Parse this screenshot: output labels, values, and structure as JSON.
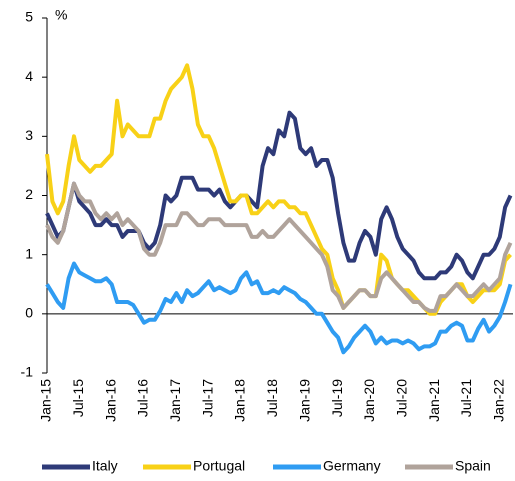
{
  "chart_data": {
    "type": "line",
    "ylabel": "%",
    "categories": [
      "Jan-15",
      null,
      null,
      null,
      null,
      null,
      "Jul-15",
      null,
      null,
      null,
      null,
      null,
      "Jan-16",
      null,
      null,
      null,
      null,
      null,
      "Jul-16",
      null,
      null,
      null,
      null,
      null,
      "Jan-17",
      null,
      null,
      null,
      null,
      null,
      "Jul-17",
      null,
      null,
      null,
      null,
      null,
      "Jan-18",
      null,
      null,
      null,
      null,
      null,
      "Jul-18",
      null,
      null,
      null,
      null,
      null,
      "Jan-19",
      null,
      null,
      null,
      null,
      null,
      "Jul-19",
      null,
      null,
      null,
      null,
      null,
      "Jan-20",
      null,
      null,
      null,
      null,
      null,
      "Jul-20",
      null,
      null,
      null,
      null,
      null,
      "Jan-21",
      null,
      null,
      null,
      null,
      null,
      "Jul-21",
      null,
      null,
      null,
      null,
      null,
      "Jan-22",
      null,
      null
    ],
    "series": [
      {
        "name": "Italy",
        "color": "#2e3a78",
        "values": [
          1.7,
          1.5,
          1.3,
          1.4,
          1.8,
          2.2,
          1.9,
          1.8,
          1.7,
          1.5,
          1.5,
          1.6,
          1.5,
          1.5,
          1.3,
          1.4,
          1.4,
          1.4,
          1.2,
          1.1,
          1.2,
          1.5,
          2.0,
          1.9,
          2.0,
          2.3,
          2.3,
          2.3,
          2.1,
          2.1,
          2.1,
          2.0,
          2.1,
          1.9,
          1.8,
          1.9,
          2.0,
          2.0,
          1.9,
          1.8,
          2.5,
          2.8,
          2.7,
          3.1,
          3.0,
          3.4,
          3.3,
          2.8,
          2.7,
          2.8,
          2.5,
          2.6,
          2.6,
          2.3,
          1.7,
          1.2,
          0.9,
          0.9,
          1.2,
          1.4,
          1.3,
          1.0,
          1.6,
          1.8,
          1.6,
          1.3,
          1.1,
          1.0,
          0.9,
          0.7,
          0.6,
          0.6,
          0.6,
          0.7,
          0.7,
          0.8,
          1.0,
          0.9,
          0.7,
          0.6,
          0.8,
          1.0,
          1.0,
          1.1,
          1.3,
          1.8,
          2.0
        ]
      },
      {
        "name": "Portugal",
        "color": "#f8d117",
        "values": [
          2.7,
          1.9,
          1.7,
          1.9,
          2.5,
          3.0,
          2.6,
          2.5,
          2.4,
          2.5,
          2.5,
          2.6,
          2.7,
          3.6,
          3.0,
          3.2,
          3.1,
          3.0,
          3.0,
          3.0,
          3.3,
          3.3,
          3.6,
          3.8,
          3.9,
          4.0,
          4.2,
          3.8,
          3.2,
          3.0,
          3.0,
          2.8,
          2.5,
          2.2,
          1.9,
          1.9,
          2.0,
          2.0,
          1.7,
          1.7,
          1.8,
          1.9,
          1.8,
          1.9,
          1.9,
          1.8,
          1.8,
          1.7,
          1.7,
          1.5,
          1.3,
          1.1,
          1.0,
          0.6,
          0.4,
          0.1,
          0.2,
          0.3,
          0.4,
          0.4,
          0.3,
          0.3,
          1.0,
          0.9,
          0.6,
          0.5,
          0.4,
          0.4,
          0.3,
          0.2,
          0.1,
          0.0,
          0.0,
          0.2,
          0.3,
          0.4,
          0.5,
          0.5,
          0.3,
          0.2,
          0.3,
          0.4,
          0.4,
          0.4,
          0.5,
          0.9,
          1.0
        ]
      },
      {
        "name": "Germany",
        "color": "#2f9cf2",
        "values": [
          0.5,
          0.35,
          0.2,
          0.1,
          0.6,
          0.85,
          0.7,
          0.65,
          0.6,
          0.55,
          0.55,
          0.6,
          0.5,
          0.2,
          0.2,
          0.2,
          0.15,
          0.0,
          -0.15,
          -0.1,
          -0.1,
          0.05,
          0.25,
          0.2,
          0.35,
          0.2,
          0.4,
          0.3,
          0.35,
          0.45,
          0.55,
          0.4,
          0.45,
          0.4,
          0.35,
          0.4,
          0.6,
          0.7,
          0.5,
          0.55,
          0.35,
          0.35,
          0.4,
          0.35,
          0.45,
          0.4,
          0.35,
          0.25,
          0.2,
          0.1,
          0.0,
          0.0,
          -0.15,
          -0.3,
          -0.4,
          -0.65,
          -0.55,
          -0.4,
          -0.3,
          -0.2,
          -0.3,
          -0.5,
          -0.4,
          -0.5,
          -0.45,
          -0.45,
          -0.5,
          -0.45,
          -0.5,
          -0.6,
          -0.55,
          -0.55,
          -0.5,
          -0.3,
          -0.3,
          -0.2,
          -0.15,
          -0.2,
          -0.45,
          -0.45,
          -0.25,
          -0.1,
          -0.3,
          -0.2,
          -0.05,
          0.2,
          0.5
        ]
      },
      {
        "name": "Spain",
        "color": "#b0a39b",
        "values": [
          1.5,
          1.3,
          1.2,
          1.4,
          1.8,
          2.2,
          2.0,
          1.9,
          1.9,
          1.7,
          1.6,
          1.7,
          1.6,
          1.7,
          1.5,
          1.6,
          1.5,
          1.4,
          1.1,
          1.0,
          1.0,
          1.2,
          1.5,
          1.5,
          1.5,
          1.7,
          1.7,
          1.6,
          1.5,
          1.5,
          1.6,
          1.6,
          1.6,
          1.5,
          1.5,
          1.5,
          1.5,
          1.5,
          1.3,
          1.3,
          1.4,
          1.3,
          1.3,
          1.4,
          1.5,
          1.6,
          1.5,
          1.4,
          1.3,
          1.2,
          1.1,
          1.0,
          0.8,
          0.4,
          0.3,
          0.1,
          0.2,
          0.3,
          0.4,
          0.4,
          0.3,
          0.3,
          0.6,
          0.7,
          0.6,
          0.5,
          0.4,
          0.3,
          0.2,
          0.2,
          0.1,
          0.05,
          0.05,
          0.3,
          0.3,
          0.4,
          0.5,
          0.4,
          0.3,
          0.3,
          0.4,
          0.5,
          0.4,
          0.5,
          0.6,
          1.0,
          1.2
        ]
      }
    ],
    "ylim": [
      -1,
      5
    ],
    "yticks": [
      -1,
      0,
      1,
      2,
      3,
      4,
      5
    ],
    "legend": "bottom"
  }
}
